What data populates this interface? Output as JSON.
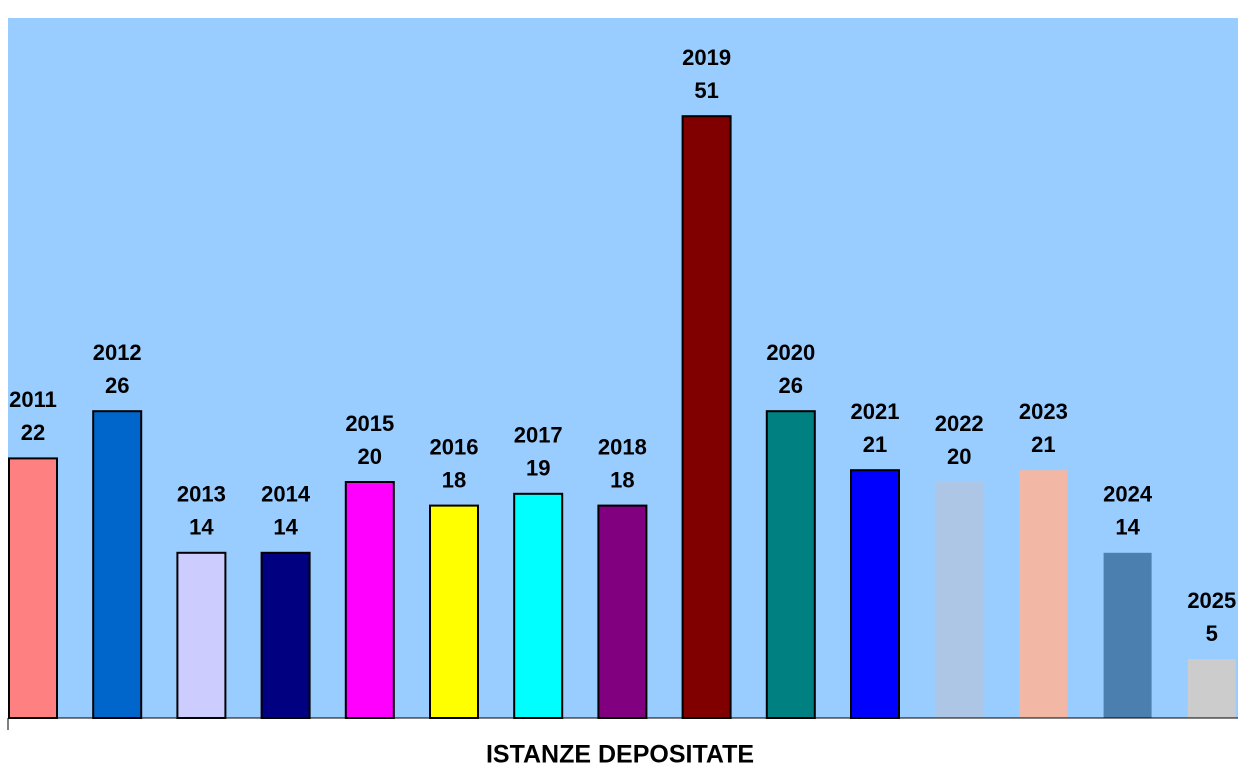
{
  "chart_data": {
    "type": "bar",
    "x_label": "ISTANZE DEPOSITATE",
    "categories": [
      "2011",
      "2012",
      "2013",
      "2014",
      "2015",
      "2016",
      "2017",
      "2018",
      "2019",
      "2020",
      "2021",
      "2022",
      "2023",
      "2024",
      "2025"
    ],
    "values": [
      22,
      26,
      14,
      14,
      20,
      18,
      19,
      18,
      51,
      26,
      21,
      20,
      21,
      14,
      5
    ],
    "colors": [
      "#ff8080",
      "#0066cc",
      "#ccccff",
      "#000080",
      "#ff00ff",
      "#ffff00",
      "#00ffff",
      "#800080",
      "#800000",
      "#008080",
      "#0000ff",
      "#adc6e6",
      "#f2b8a5",
      "#4a7fb0",
      "#cccccc"
    ],
    "edge_colors": [
      "#000000",
      "#000000",
      "#000000",
      "#000000",
      "#000000",
      "#000000",
      "#000000",
      "#000000",
      "#000000",
      "#000000",
      "#000000",
      null,
      null,
      null,
      null
    ],
    "background": "#99ccff",
    "ylim": [
      0,
      60
    ]
  }
}
